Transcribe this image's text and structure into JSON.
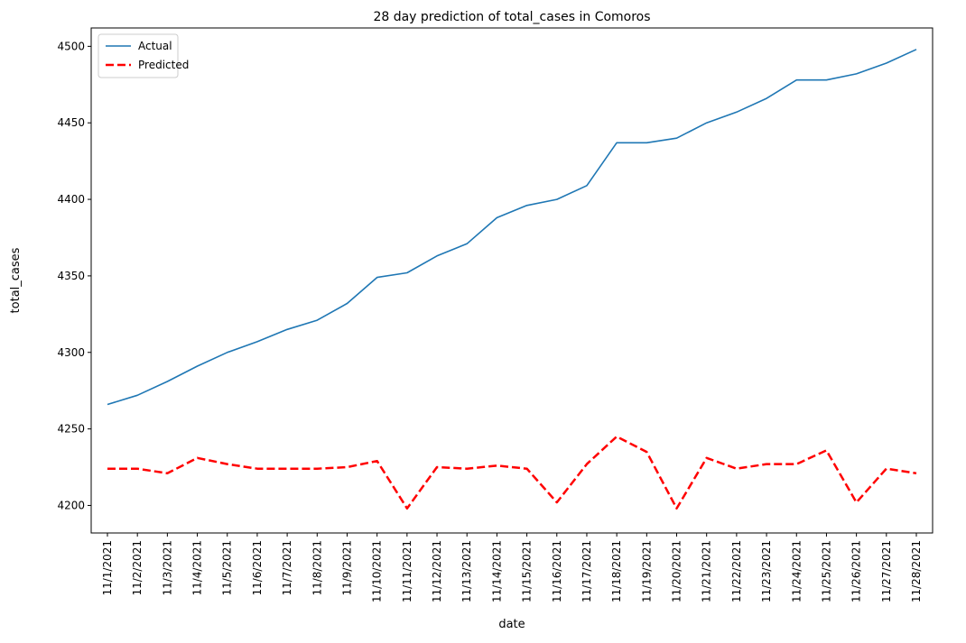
{
  "chart_data": {
    "type": "line",
    "title": "28 day prediction of total_cases in Comoros",
    "xlabel": "date",
    "ylabel": "total_cases",
    "ylim": [
      4182,
      4512
    ],
    "yticks": [
      4200,
      4250,
      4300,
      4350,
      4400,
      4450,
      4500
    ],
    "grid": false,
    "legend_position": "top-left",
    "categories": [
      "11/1/2021",
      "11/2/2021",
      "11/3/2021",
      "11/4/2021",
      "11/5/2021",
      "11/6/2021",
      "11/7/2021",
      "11/8/2021",
      "11/9/2021",
      "11/10/2021",
      "11/11/2021",
      "11/12/2021",
      "11/13/2021",
      "11/14/2021",
      "11/15/2021",
      "11/16/2021",
      "11/17/2021",
      "11/18/2021",
      "11/19/2021",
      "11/20/2021",
      "11/21/2021",
      "11/22/2021",
      "11/23/2021",
      "11/24/2021",
      "11/25/2021",
      "11/26/2021",
      "11/27/2021",
      "11/28/2021"
    ],
    "series": [
      {
        "name": "Actual",
        "color": "#1f77b4",
        "style": "solid",
        "values": [
          4266,
          4272,
          4281,
          4291,
          4300,
          4307,
          4315,
          4321,
          4332,
          4349,
          4352,
          4363,
          4371,
          4388,
          4396,
          4400,
          4409,
          4437,
          4437,
          4440,
          4450,
          4457,
          4466,
          4478,
          4478,
          4482,
          4489,
          4498
        ]
      },
      {
        "name": "Predicted",
        "color": "#ff0000",
        "style": "dashed",
        "values": [
          4224,
          4224,
          4221,
          4231,
          4227,
          4224,
          4224,
          4224,
          4225,
          4229,
          4198,
          4225,
          4224,
          4226,
          4224,
          4202,
          4227,
          4245,
          4235,
          4198,
          4231,
          4224,
          4227,
          4227,
          4236,
          4202,
          4224,
          4221
        ]
      }
    ]
  }
}
